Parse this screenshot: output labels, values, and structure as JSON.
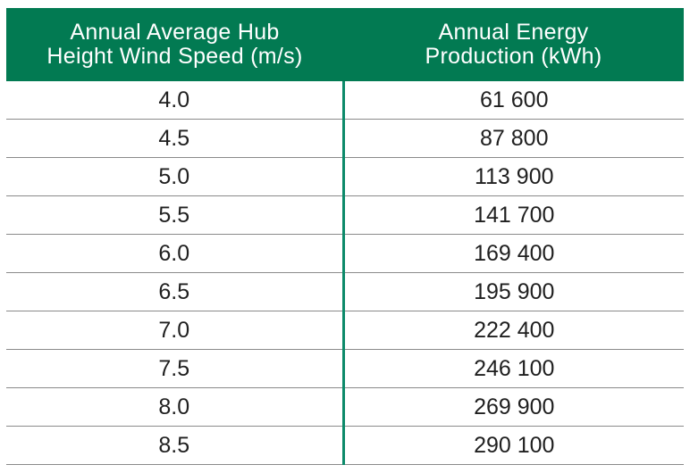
{
  "table": {
    "headers": [
      [
        "Annual Average Hub",
        "Height Wind Speed (m/s)"
      ],
      [
        "Annual Energy",
        "Production (kWh)"
      ]
    ],
    "rows": [
      [
        "4.0",
        "61 600"
      ],
      [
        "4.5",
        "87 800"
      ],
      [
        "5.0",
        "113 900"
      ],
      [
        "5.5",
        "141 700"
      ],
      [
        "6.0",
        "169 400"
      ],
      [
        "6.5",
        "195 900"
      ],
      [
        "7.0",
        "222 400"
      ],
      [
        "7.5",
        "246 100"
      ],
      [
        "8.0",
        "269 900"
      ],
      [
        "8.5",
        "290 100"
      ]
    ]
  },
  "colors": {
    "header_background": "#027a52",
    "header_text": "#ffffff",
    "column_divider": "#0c8a6a",
    "row_divider": "#8a8a8a"
  }
}
